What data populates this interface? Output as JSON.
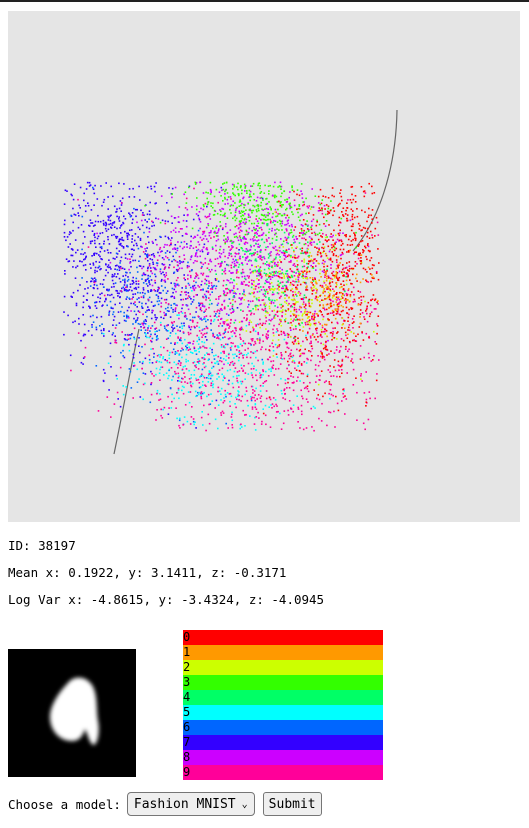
{
  "info": {
    "id_line": "ID: 38197",
    "mean_line": "Mean x: 0.1922, y: 3.1411, z: -0.3171",
    "logvar_line": "Log Var x: -4.8615, y: -3.4324, z: -4.0945"
  },
  "legend": {
    "items": [
      {
        "label": "0",
        "color": "#ff0000"
      },
      {
        "label": "1",
        "color": "#ff9900"
      },
      {
        "label": "2",
        "color": "#ccff00"
      },
      {
        "label": "3",
        "color": "#33ff00"
      },
      {
        "label": "4",
        "color": "#00ff66"
      },
      {
        "label": "5",
        "color": "#00ffff"
      },
      {
        "label": "6",
        "color": "#0066ff"
      },
      {
        "label": "7",
        "color": "#3300ff"
      },
      {
        "label": "8",
        "color": "#cc00ff"
      },
      {
        "label": "9",
        "color": "#ff0099"
      }
    ]
  },
  "controls": {
    "model_label": "Choose a model:",
    "model_selected": "Fashion MNIST",
    "submit_label": "Submit"
  },
  "viz": {
    "background": "#e5e5e5"
  }
}
